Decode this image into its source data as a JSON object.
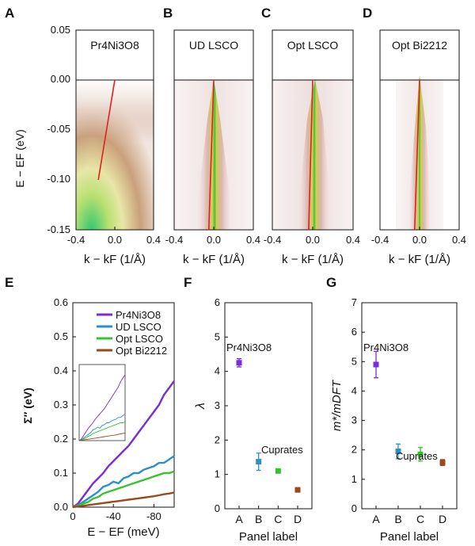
{
  "figure": {
    "panel_letters": [
      "A",
      "B",
      "C",
      "D",
      "E",
      "F",
      "G"
    ]
  },
  "chart_data": [
    {
      "panel": "A",
      "type": "heatmap",
      "title": "Pr4Ni3O8",
      "xlabel": "k − kF (1/Å)",
      "ylabel": "E − EF (eV)",
      "xlim": [
        -0.4,
        0.4
      ],
      "ylim": [
        -0.15,
        0.05
      ],
      "xticks": [
        "-0.4",
        "0.0",
        "0.4"
      ],
      "yticks": [
        "0.05",
        "0.00",
        "-0.05",
        "-0.10",
        "-0.15"
      ],
      "fermi_level": 0.0,
      "fit_line": {
        "k": [
          -0.17,
          0.0
        ],
        "E": [
          -0.1,
          0.0
        ]
      }
    },
    {
      "panel": "B",
      "type": "heatmap",
      "title": "UD LSCO",
      "xlabel": "k − kF (1/Å)",
      "xlim": [
        -0.4,
        0.4
      ],
      "ylim": [
        -0.15,
        0.05
      ],
      "xticks": [
        "-0.4",
        "0.0",
        "0.4"
      ],
      "fermi_level": 0.0,
      "fit_line": {
        "k": [
          -0.05,
          0.0
        ],
        "E": [
          -0.15,
          0.0
        ]
      }
    },
    {
      "panel": "C",
      "type": "heatmap",
      "title": "Opt LSCO",
      "xlabel": "k − kF (1/Å)",
      "xlim": [
        -0.4,
        0.4
      ],
      "ylim": [
        -0.15,
        0.05
      ],
      "xticks": [
        "-0.4",
        "0.0",
        "0.4"
      ],
      "fermi_level": 0.0,
      "fit_line": {
        "k": [
          -0.04,
          0.0
        ],
        "E": [
          -0.15,
          0.0
        ]
      }
    },
    {
      "panel": "D",
      "type": "heatmap",
      "title": "Opt Bi2212",
      "xlabel": "k − kF (1/Å)",
      "xlim": [
        -0.4,
        0.4
      ],
      "ylim": [
        -0.15,
        0.05
      ],
      "xticks": [
        "-0.4",
        "0.0",
        "0.4"
      ],
      "fermi_level": 0.0,
      "fit_line": {
        "k": [
          -0.05,
          0.0
        ],
        "E": [
          -0.15,
          0.0
        ]
      }
    },
    {
      "panel": "E",
      "type": "line",
      "xlabel": "E − EF (meV)",
      "ylabel": "Σ″ (eV)",
      "xlim": [
        0,
        -100
      ],
      "ylim": [
        0,
        0.6
      ],
      "xticks": [
        "0",
        "-40",
        "-80"
      ],
      "yticks": [
        "0.0",
        "0.1",
        "0.2",
        "0.3",
        "0.4",
        "0.5",
        "0.6"
      ],
      "x": [
        0,
        -5,
        -10,
        -15,
        -20,
        -25,
        -30,
        -35,
        -40,
        -45,
        -50,
        -55,
        -60,
        -65,
        -70,
        -75,
        -80,
        -85,
        -90,
        -95,
        -100
      ],
      "series": [
        {
          "name": "Pr4Ni3O8",
          "color": "#7B2BD8",
          "values": [
            0.0,
            0.01,
            0.03,
            0.05,
            0.07,
            0.085,
            0.1,
            0.12,
            0.135,
            0.15,
            0.165,
            0.18,
            0.2,
            0.22,
            0.24,
            0.26,
            0.28,
            0.3,
            0.33,
            0.35,
            0.37
          ]
        },
        {
          "name": "UD LSCO",
          "color": "#2C8FC9",
          "values": [
            0.0,
            0.005,
            0.015,
            0.025,
            0.035,
            0.045,
            0.06,
            0.065,
            0.075,
            0.07,
            0.085,
            0.09,
            0.1,
            0.1,
            0.11,
            0.115,
            0.12,
            0.13,
            0.13,
            0.14,
            0.15
          ]
        },
        {
          "name": "Opt LSCO",
          "color": "#35C42F",
          "values": [
            0.0,
            0.005,
            0.01,
            0.015,
            0.025,
            0.03,
            0.04,
            0.045,
            0.05,
            0.055,
            0.06,
            0.065,
            0.07,
            0.075,
            0.08,
            0.085,
            0.09,
            0.095,
            0.1,
            0.1,
            0.105
          ]
        },
        {
          "name": "Opt Bi2212",
          "color": "#9A4A1E",
          "values": [
            0.0,
            0.002,
            0.004,
            0.006,
            0.008,
            0.01,
            0.012,
            0.014,
            0.016,
            0.018,
            0.02,
            0.022,
            0.024,
            0.026,
            0.028,
            0.03,
            0.032,
            0.035,
            0.038,
            0.04,
            0.043
          ]
        }
      ]
    },
    {
      "panel": "F",
      "type": "scatter",
      "xlabel": "Panel label",
      "ylabel": "λ",
      "ylim": [
        0,
        6
      ],
      "yticks": [
        "0",
        "1",
        "2",
        "3",
        "4",
        "5",
        "6"
      ],
      "categories": [
        "A",
        "B",
        "C",
        "D"
      ],
      "values": [
        4.25,
        1.37,
        1.1,
        0.55
      ],
      "errors": [
        0.12,
        0.25,
        0.04,
        0.04
      ],
      "colors": [
        "#7B2BD8",
        "#2C8FC9",
        "#35C42F",
        "#9A4A1E"
      ],
      "annotations": [
        "Pr4Ni3O8",
        "Cuprates"
      ]
    },
    {
      "panel": "G",
      "type": "scatter",
      "xlabel": "Panel label",
      "ylabel": "m*/mDFT",
      "ylim": [
        0,
        7
      ],
      "yticks": [
        "0",
        "1",
        "2",
        "3",
        "4",
        "5",
        "6",
        "7"
      ],
      "categories": [
        "A",
        "B",
        "C",
        "D"
      ],
      "values": [
        4.9,
        1.95,
        1.85,
        1.57
      ],
      "errors": [
        0.45,
        0.25,
        0.23,
        0.1
      ],
      "colors": [
        "#7B2BD8",
        "#2C8FC9",
        "#35C42F",
        "#9A4A1E"
      ],
      "annotations": [
        "Pr4Ni3O8",
        "Cuprates"
      ]
    }
  ]
}
